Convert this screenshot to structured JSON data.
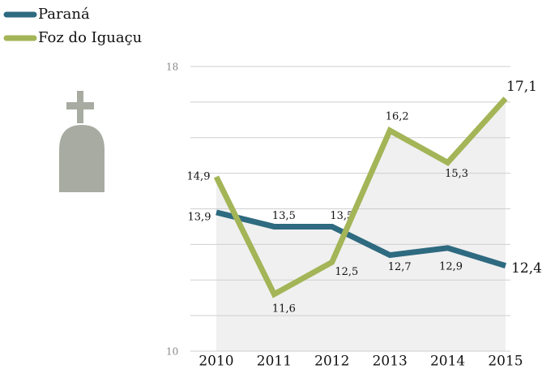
{
  "chart_data": {
    "type": "line",
    "categories": [
      "2010",
      "2011",
      "2012",
      "2013",
      "2014",
      "2015"
    ],
    "series": [
      {
        "name": "Paraná",
        "color": "#2e6a80",
        "values": [
          13.9,
          13.5,
          13.5,
          12.7,
          12.9,
          12.4
        ],
        "value_labels": [
          "13,9",
          "13,5",
          "13,5",
          "12,7",
          "12,9",
          "12,4"
        ]
      },
      {
        "name": "Foz do Iguaçu",
        "color": "#a3b557",
        "values": [
          14.9,
          11.6,
          12.5,
          16.2,
          15.3,
          17.1
        ],
        "value_labels": [
          "14,9",
          "11,6",
          "12,5",
          "16,2",
          "15,3",
          "17,1"
        ]
      }
    ],
    "ylim": [
      10,
      18
    ],
    "yticks": [
      10,
      18
    ],
    "minor_yticks": [
      11,
      12,
      13,
      14,
      15,
      16,
      17
    ],
    "grid": true,
    "legend": "top-left"
  }
}
